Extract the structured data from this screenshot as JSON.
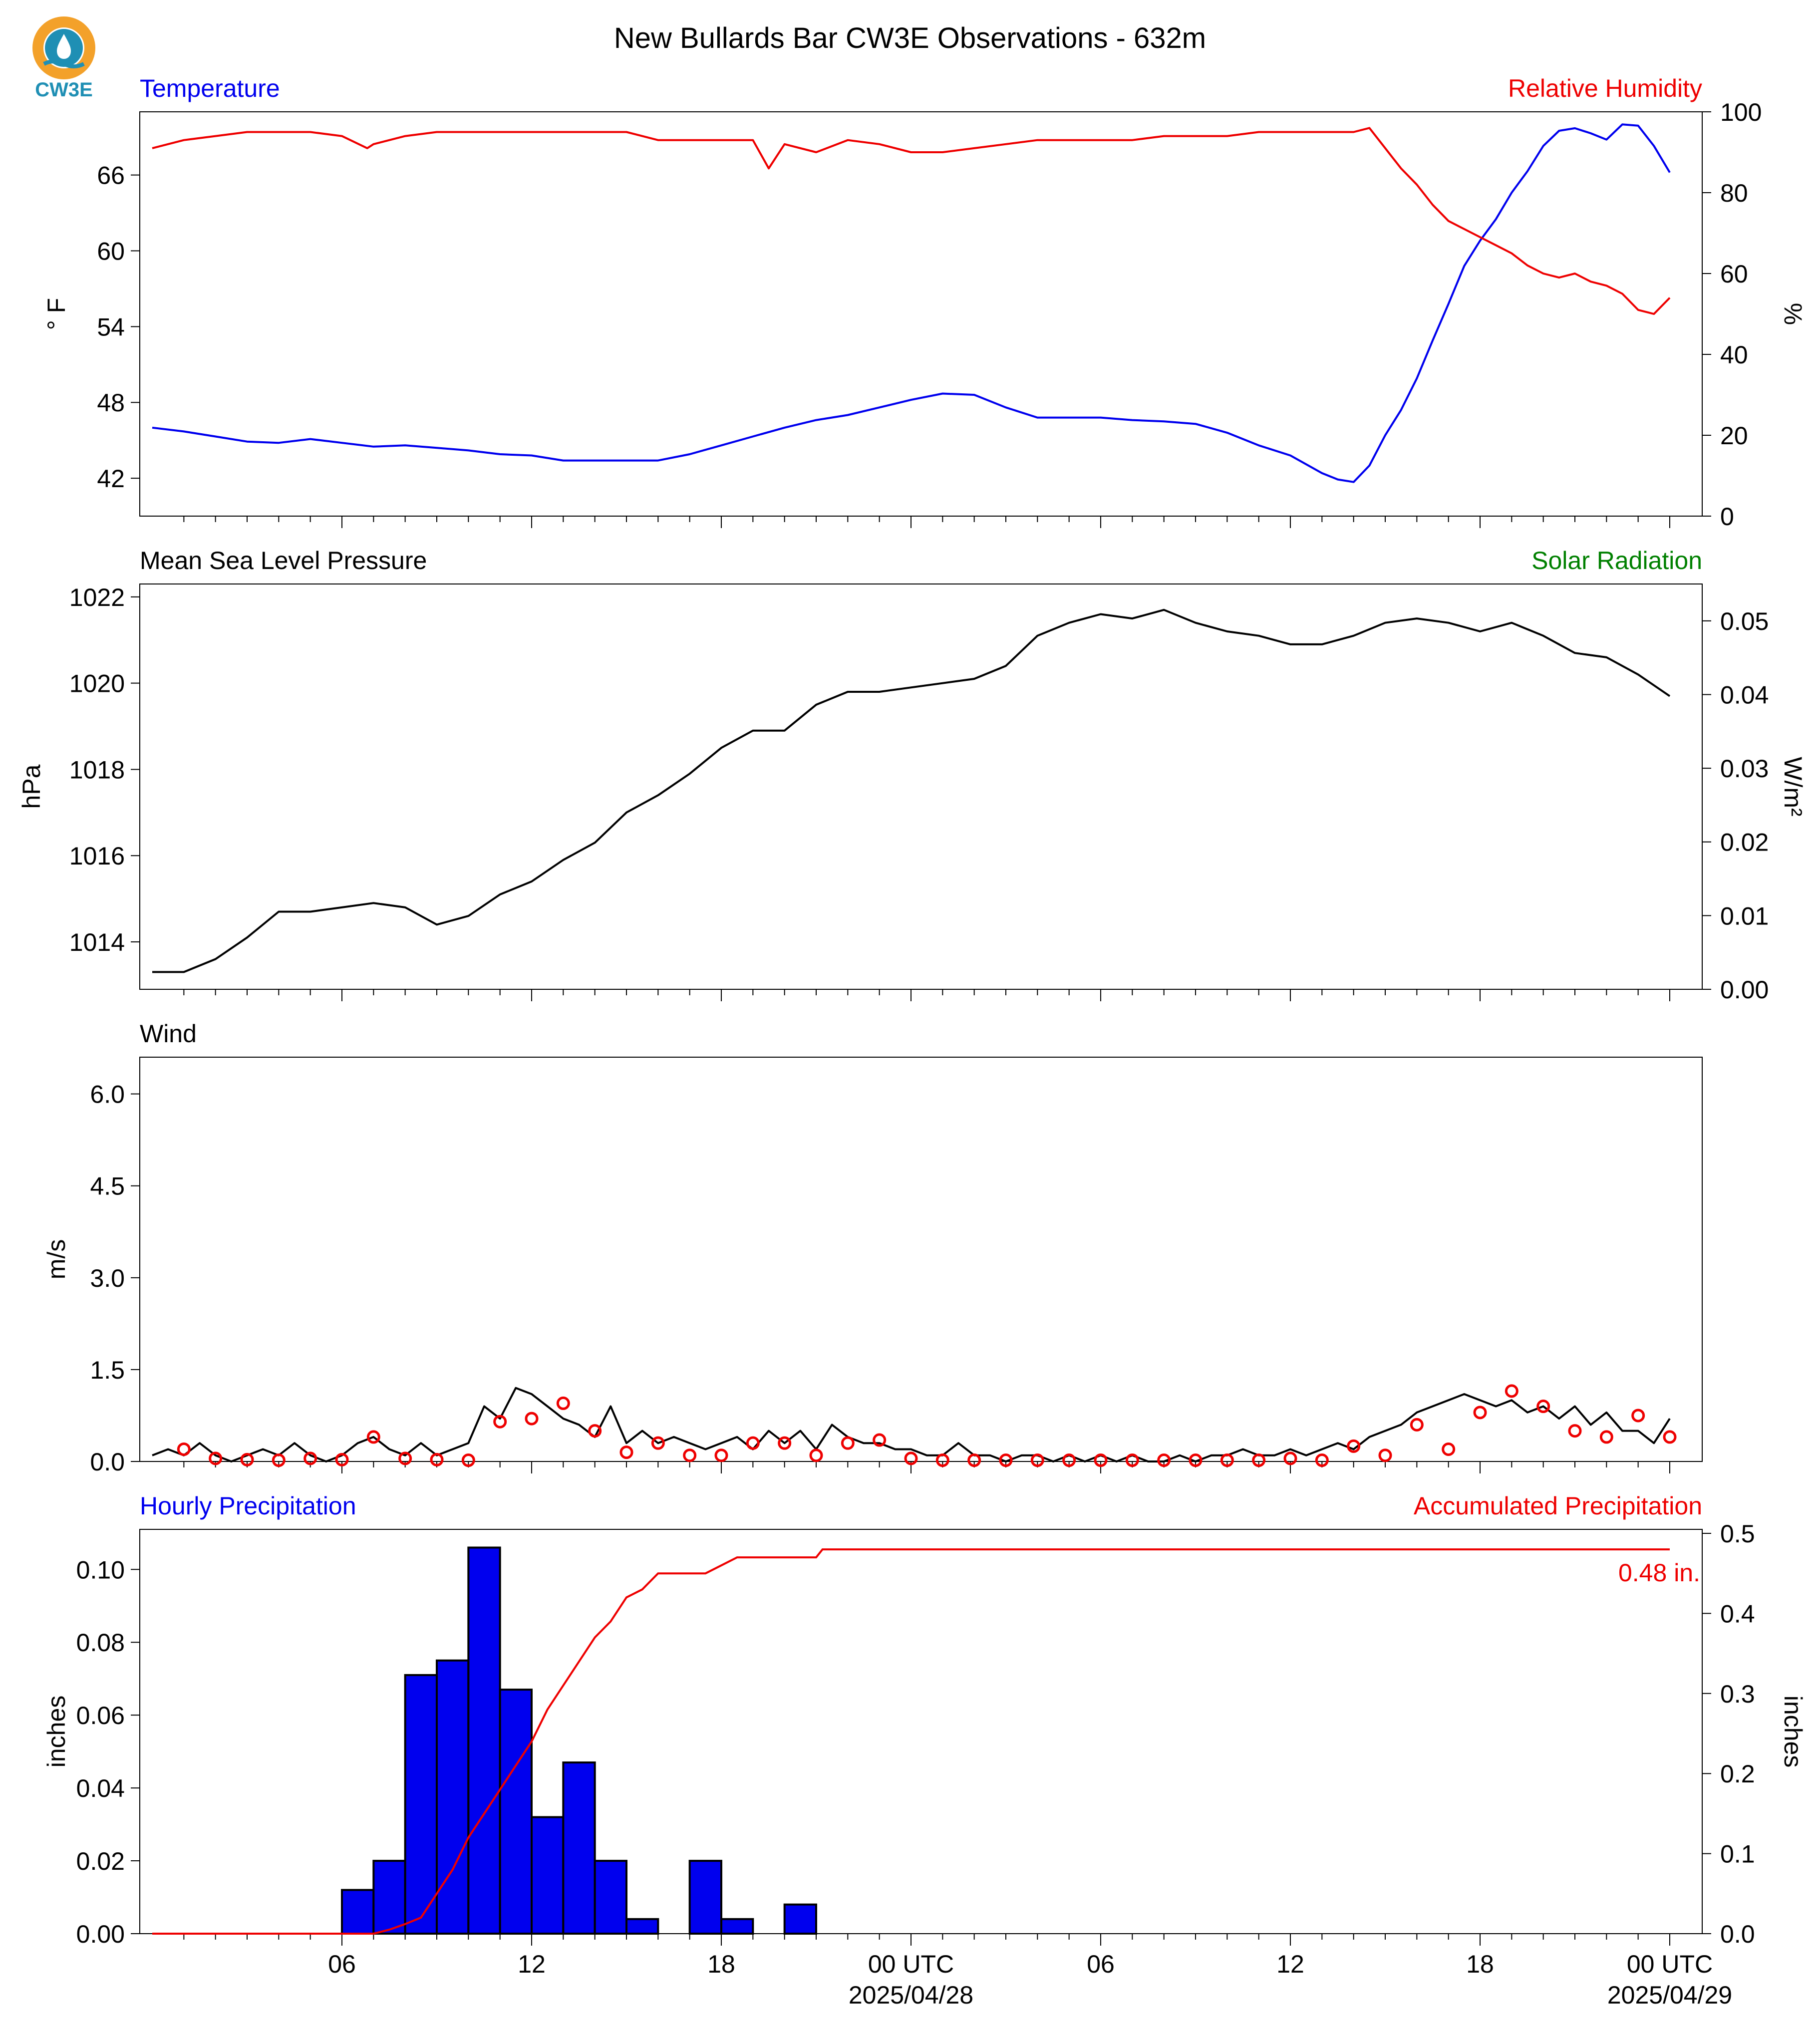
{
  "title": "New Bullards Bar CW3E Observations - 632m",
  "logo": {
    "text": "CW3E",
    "ring_color": "#f3a12a",
    "wave_color": "#1f8fb4"
  },
  "x_axis": {
    "start": "2025-04-27 00:00 UTC",
    "end": "2025-04-29 00:00 UTC",
    "range_hours": [
      0,
      48
    ],
    "ticks": [
      {
        "hour": 6,
        "label": "06"
      },
      {
        "hour": 12,
        "label": "12"
      },
      {
        "hour": 18,
        "label": "18"
      },
      {
        "hour": 24,
        "label": "00 UTC",
        "sub": "2025/04/28"
      },
      {
        "hour": 30,
        "label": "06"
      },
      {
        "hour": 36,
        "label": "12"
      },
      {
        "hour": 42,
        "label": "18"
      },
      {
        "hour": 48,
        "label": "00 UTC",
        "sub": "2025/04/29"
      }
    ]
  },
  "colors": {
    "temperature": "#0000ee",
    "humidity": "#ee0000",
    "pressure": "#000000",
    "solar": "#008000",
    "wind": "#000000",
    "gust": "#ee0000",
    "hourly": "#0000ee",
    "accum": "#ee0000"
  },
  "chart_data": [
    {
      "type": "line",
      "left_label": "Temperature",
      "right_label": "Relative Humidity",
      "ylabel": "° F",
      "ylabel_right": "%",
      "ylim": [
        39,
        71
      ],
      "ylim_right": [
        0,
        100
      ],
      "yticks": [
        42,
        48,
        54,
        60,
        66
      ],
      "yticks_right": [
        0,
        20,
        40,
        60,
        80,
        100
      ],
      "series": [
        {
          "axis": "left",
          "color": "#0000ee",
          "x": [
            0,
            1,
            2,
            3,
            4,
            5,
            6,
            7,
            8,
            9,
            10,
            11,
            12,
            13,
            14,
            15,
            16,
            17,
            18,
            19,
            20,
            21,
            22,
            23,
            24,
            25,
            26,
            27,
            28,
            29,
            30,
            31,
            32,
            33,
            34,
            35,
            36,
            37,
            37.5,
            38,
            38.5,
            39,
            39.5,
            40,
            40.5,
            41,
            41.5,
            42,
            42.5,
            43,
            43.5,
            44,
            44.5,
            45,
            45.5,
            46,
            46.5,
            47,
            47.5,
            48
          ],
          "y": [
            46.0,
            45.7,
            45.3,
            44.9,
            44.8,
            45.1,
            44.8,
            44.5,
            44.6,
            44.4,
            44.2,
            43.9,
            43.8,
            43.4,
            43.4,
            43.4,
            43.4,
            43.9,
            44.6,
            45.3,
            46.0,
            46.6,
            47.0,
            47.6,
            48.2,
            48.7,
            48.6,
            47.6,
            46.8,
            46.8,
            46.8,
            46.6,
            46.5,
            46.3,
            45.6,
            44.6,
            43.8,
            42.4,
            41.9,
            41.7,
            43.0,
            45.4,
            47.4,
            49.9,
            52.9,
            55.8,
            58.8,
            60.8,
            62.5,
            64.6,
            66.3,
            68.3,
            69.5,
            69.7,
            69.3,
            68.8,
            70.0,
            69.9,
            68.3,
            66.2
          ]
        },
        {
          "axis": "right",
          "color": "#ee0000",
          "x": [
            0,
            1,
            2,
            3,
            4,
            5,
            6,
            6.8,
            7,
            8,
            9,
            10,
            11,
            12,
            13,
            14,
            15,
            16,
            17,
            18,
            19,
            19.5,
            20,
            21,
            22,
            23,
            24,
            25,
            26,
            27,
            28,
            29,
            30,
            31,
            32,
            33,
            34,
            35,
            36,
            37,
            38,
            38.5,
            39,
            39.5,
            40,
            40.5,
            41,
            41.5,
            42,
            42.5,
            43,
            43.5,
            44,
            44.5,
            45,
            45.5,
            46,
            46.5,
            47,
            47.5,
            48
          ],
          "y": [
            91,
            93,
            94,
            95,
            95,
            95,
            94,
            91,
            92,
            94,
            95,
            95,
            95,
            95,
            95,
            95,
            95,
            93,
            93,
            93,
            93,
            86,
            92,
            90,
            93,
            92,
            90,
            90,
            91,
            92,
            93,
            93,
            93,
            93,
            94,
            94,
            94,
            95,
            95,
            95,
            95,
            96,
            91,
            86,
            82,
            77,
            73,
            71,
            69,
            67,
            65,
            62,
            60,
            59,
            60,
            58,
            57,
            55,
            51,
            50,
            54
          ]
        }
      ]
    },
    {
      "type": "line",
      "left_label": "Mean Sea Level Pressure",
      "right_label": "Solar Radiation",
      "ylabel": "hPa",
      "ylabel_right": "W/m²",
      "ylim": [
        1012.9,
        1022.3
      ],
      "ylim_right": [
        0.0,
        0.055
      ],
      "yticks": [
        1014,
        1016,
        1018,
        1020,
        1022
      ],
      "yticks_right": [
        "0.00",
        "0.01",
        "0.02",
        "0.03",
        "0.04",
        "0.05"
      ],
      "series": [
        {
          "axis": "left",
          "color": "#000000",
          "x": [
            0,
            1,
            2,
            3,
            4,
            5,
            6,
            7,
            8,
            9,
            10,
            11,
            12,
            13,
            14,
            15,
            16,
            17,
            18,
            19,
            20,
            21,
            22,
            23,
            24,
            25,
            26,
            27,
            28,
            29,
            30,
            31,
            32,
            33,
            34,
            35,
            36,
            37,
            38,
            39,
            40,
            41,
            42,
            43,
            44,
            45,
            46,
            47,
            48
          ],
          "y": [
            1013.3,
            1013.3,
            1013.6,
            1014.1,
            1014.7,
            1014.7,
            1014.8,
            1014.9,
            1014.8,
            1014.4,
            1014.6,
            1015.1,
            1015.4,
            1015.9,
            1016.3,
            1017.0,
            1017.4,
            1017.9,
            1018.5,
            1018.9,
            1018.9,
            1019.5,
            1019.8,
            1019.8,
            1019.9,
            1020.0,
            1020.1,
            1020.4,
            1021.1,
            1021.4,
            1021.6,
            1021.5,
            1021.7,
            1021.4,
            1021.2,
            1021.1,
            1020.9,
            1020.9,
            1021.1,
            1021.4,
            1021.5,
            1021.4,
            1021.2,
            1021.4,
            1021.1,
            1020.7,
            1020.6,
            1020.2,
            1019.7
          ]
        }
      ]
    },
    {
      "type": "line",
      "left_label": "Wind",
      "ylabel": "m/s",
      "ylim": [
        0.0,
        6.6
      ],
      "yticks": [
        "0.0",
        "1.5",
        "3.0",
        "4.5",
        "6.0"
      ],
      "series": [
        {
          "axis": "left",
          "color": "#000000",
          "name": "",
          "x": [
            0,
            0.5,
            1,
            1.5,
            2,
            2.5,
            3,
            3.5,
            4,
            4.5,
            5,
            5.5,
            6,
            6.5,
            7,
            7.5,
            8,
            8.5,
            9,
            9.5,
            10,
            10.5,
            11,
            11.5,
            12,
            12.5,
            13,
            13.5,
            14,
            14.5,
            15,
            15.5,
            16,
            16.5,
            17,
            17.5,
            18,
            18.5,
            19,
            19.5,
            20,
            20.5,
            21,
            21.5,
            22,
            22.5,
            23,
            23.5,
            24,
            24.5,
            25,
            25.5,
            26,
            26.5,
            27,
            27.5,
            28,
            28.5,
            29,
            29.5,
            30,
            30.5,
            31,
            31.5,
            32,
            32.5,
            33,
            33.5,
            34,
            34.5,
            35,
            35.5,
            36,
            36.5,
            37,
            37.5,
            38,
            38.5,
            39,
            39.5,
            40,
            40.5,
            41,
            41.5,
            42,
            42.5,
            43,
            43.5,
            44,
            44.5,
            45,
            45.5,
            46,
            46.5,
            47,
            47.5,
            48
          ],
          "y": [
            0.1,
            0.2,
            0.1,
            0.3,
            0.1,
            0.0,
            0.1,
            0.2,
            0.1,
            0.3,
            0.1,
            0.0,
            0.1,
            0.3,
            0.4,
            0.2,
            0.1,
            0.3,
            0.1,
            0.2,
            0.3,
            0.9,
            0.7,
            1.2,
            1.1,
            0.9,
            0.7,
            0.6,
            0.4,
            0.9,
            0.3,
            0.5,
            0.3,
            0.4,
            0.3,
            0.2,
            0.3,
            0.4,
            0.2,
            0.5,
            0.3,
            0.5,
            0.2,
            0.6,
            0.4,
            0.3,
            0.3,
            0.2,
            0.2,
            0.1,
            0.1,
            0.3,
            0.1,
            0.1,
            0.0,
            0.1,
            0.1,
            0.0,
            0.1,
            0.0,
            0.1,
            0.0,
            0.1,
            0.0,
            0.0,
            0.1,
            0.0,
            0.1,
            0.1,
            0.2,
            0.1,
            0.1,
            0.2,
            0.1,
            0.2,
            0.3,
            0.2,
            0.4,
            0.5,
            0.6,
            0.8,
            0.9,
            1.0,
            1.1,
            1.0,
            0.9,
            1.0,
            0.8,
            0.9,
            0.7,
            0.9,
            0.6,
            0.8,
            0.5,
            0.5,
            0.3,
            0.7
          ]
        },
        {
          "axis": "left",
          "color": "#ee0000",
          "name": "",
          "x": [
            1,
            2,
            3,
            4,
            5,
            6,
            7,
            8,
            9,
            10,
            11,
            12,
            13,
            14,
            15,
            16,
            17,
            18,
            19,
            20,
            21,
            22,
            23,
            24,
            25,
            26,
            27,
            28,
            29,
            30,
            31,
            32,
            33,
            34,
            35,
            36,
            37,
            38,
            39,
            40,
            41,
            42,
            43,
            44,
            45,
            46,
            47,
            48
          ],
          "y": [
            0.2,
            0.05,
            0.03,
            0.02,
            0.05,
            0.03,
            0.4,
            0.05,
            0.03,
            0.02,
            0.65,
            0.7,
            0.95,
            0.5,
            0.15,
            0.3,
            0.1,
            0.1,
            0.3,
            0.3,
            0.1,
            0.3,
            0.35,
            0.05,
            0.02,
            0.02,
            0.02,
            0.02,
            0.02,
            0.02,
            0.02,
            0.02,
            0.02,
            0.02,
            0.02,
            0.05,
            0.02,
            0.25,
            0.1,
            0.6,
            0.2,
            0.8,
            1.15,
            0.9,
            0.5,
            0.4,
            0.75,
            0.4
          ]
        }
      ]
    },
    {
      "type": "bar",
      "left_label": "Hourly Precipitation",
      "right_label": "Accumulated Precipitation",
      "ylabel": "inches",
      "ylabel_right": "inches",
      "ylim": [
        0.0,
        0.111
      ],
      "ylim_right": [
        0.0,
        0.505
      ],
      "yticks": [
        "0.00",
        "0.02",
        "0.04",
        "0.06",
        "0.08",
        "0.10"
      ],
      "yticks_right": [
        "0.0",
        "0.1",
        "0.2",
        "0.3",
        "0.4",
        "0.5"
      ],
      "hourly": {
        "hour_start": [
          6,
          7,
          8,
          9,
          10,
          11,
          12,
          13,
          14,
          15,
          16,
          17,
          18,
          19,
          20,
          21
        ],
        "values": [
          0.012,
          0.02,
          0.071,
          0.075,
          0.106,
          0.067,
          0.032,
          0.047,
          0.02,
          0.004,
          0.0,
          0.02,
          0.004,
          0.0,
          0.008,
          0.0
        ]
      },
      "accumulated": {
        "x": [
          0,
          6,
          7,
          7.5,
          8,
          8.5,
          9,
          9.5,
          10,
          10.5,
          11,
          11.5,
          12,
          12.5,
          13,
          13.5,
          14,
          14.5,
          15,
          15.5,
          16,
          17,
          17.5,
          18,
          18.5,
          19,
          20,
          21,
          21.2,
          22,
          24,
          30,
          36,
          42,
          48
        ],
        "y": [
          0,
          0,
          0,
          0.005,
          0.012,
          0.02,
          0.05,
          0.08,
          0.12,
          0.15,
          0.18,
          0.21,
          0.24,
          0.28,
          0.31,
          0.34,
          0.37,
          0.39,
          0.42,
          0.43,
          0.45,
          0.45,
          0.45,
          0.46,
          0.47,
          0.47,
          0.47,
          0.47,
          0.48,
          0.48,
          0.48,
          0.48,
          0.48,
          0.48,
          0.48
        ]
      },
      "total_label": "0.48 in."
    }
  ]
}
